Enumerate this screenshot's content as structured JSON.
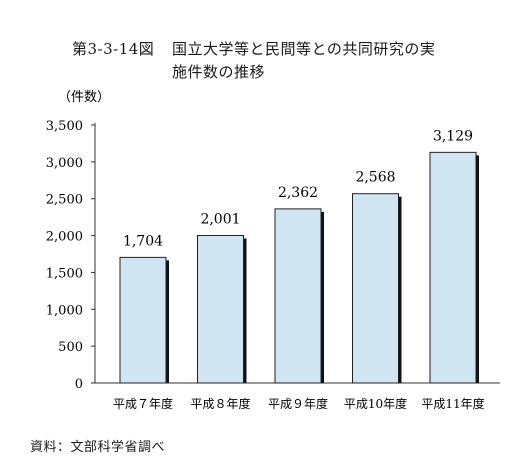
{
  "figure": {
    "number": "第3-3-14図",
    "title_line1": "国立大学等と民間等との共同研究の実",
    "title_line2": "施件数の推移"
  },
  "source": "資料：文部科学省調べ",
  "chart_data": {
    "type": "bar",
    "title": "国立大学等と民間等との共同研究の実施件数の推移",
    "ylabel": "（件数）",
    "categories": [
      "平成７年度",
      "平成８年度",
      "平成９年度",
      "平成10年度",
      "平成11年度"
    ],
    "values": [
      1704,
      2001,
      2362,
      2568,
      3129
    ],
    "data_labels": [
      "1,704",
      "2,001",
      "2,362",
      "2,568",
      "3,129"
    ],
    "yticks": [
      0,
      500,
      1000,
      1500,
      2000,
      2500,
      3000,
      3500
    ],
    "ytick_labels": [
      "0",
      "500",
      "1,000",
      "1,500",
      "2,000",
      "2,500",
      "3,000",
      "3,500"
    ],
    "ylim": [
      0,
      3500
    ],
    "grid": false,
    "legend": "none",
    "colors": {
      "bar_fill": "#cfe5f1",
      "bar_stroke": "#222222",
      "bar_shadow": "#111111",
      "axis": "#333333"
    }
  }
}
